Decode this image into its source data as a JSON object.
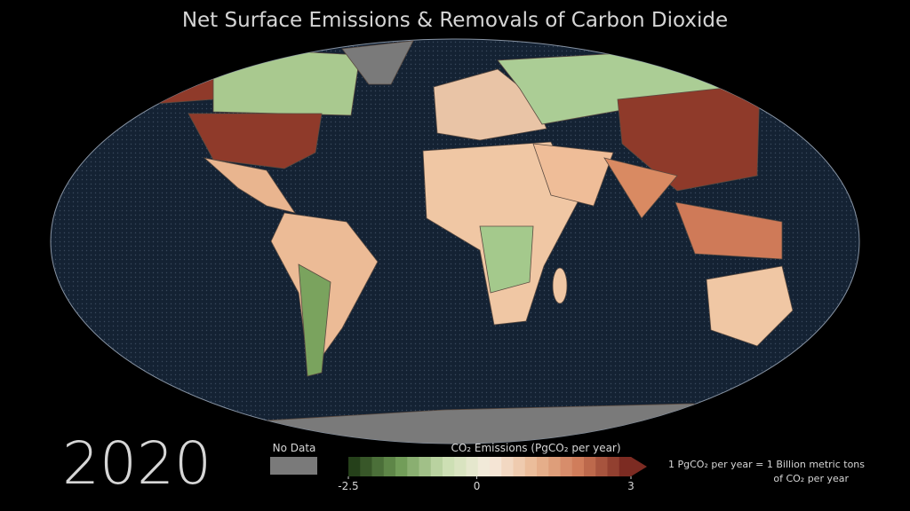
{
  "header": {
    "title": "Net Surface Emissions & Removals of Carbon Dioxide"
  },
  "year": "2020",
  "no_data": {
    "label": "No Data",
    "color": "#7a7a7a"
  },
  "legend": {
    "title": "CO₂ Emissions (PgCO₂ per year)",
    "lim": [
      -2.5,
      3
    ],
    "ticks": [
      -2.5,
      0,
      3
    ],
    "colors": [
      "#25401a",
      "#6e9a55",
      "#c9deb0",
      "#f7ecdf",
      "#eab995",
      "#cf7a58",
      "#7c2b22"
    ],
    "steps": 24
  },
  "note": {
    "lines": [
      "1 PgCO₂ per year = 1 Billion metric tons",
      "of CO₂ per year"
    ]
  }
}
